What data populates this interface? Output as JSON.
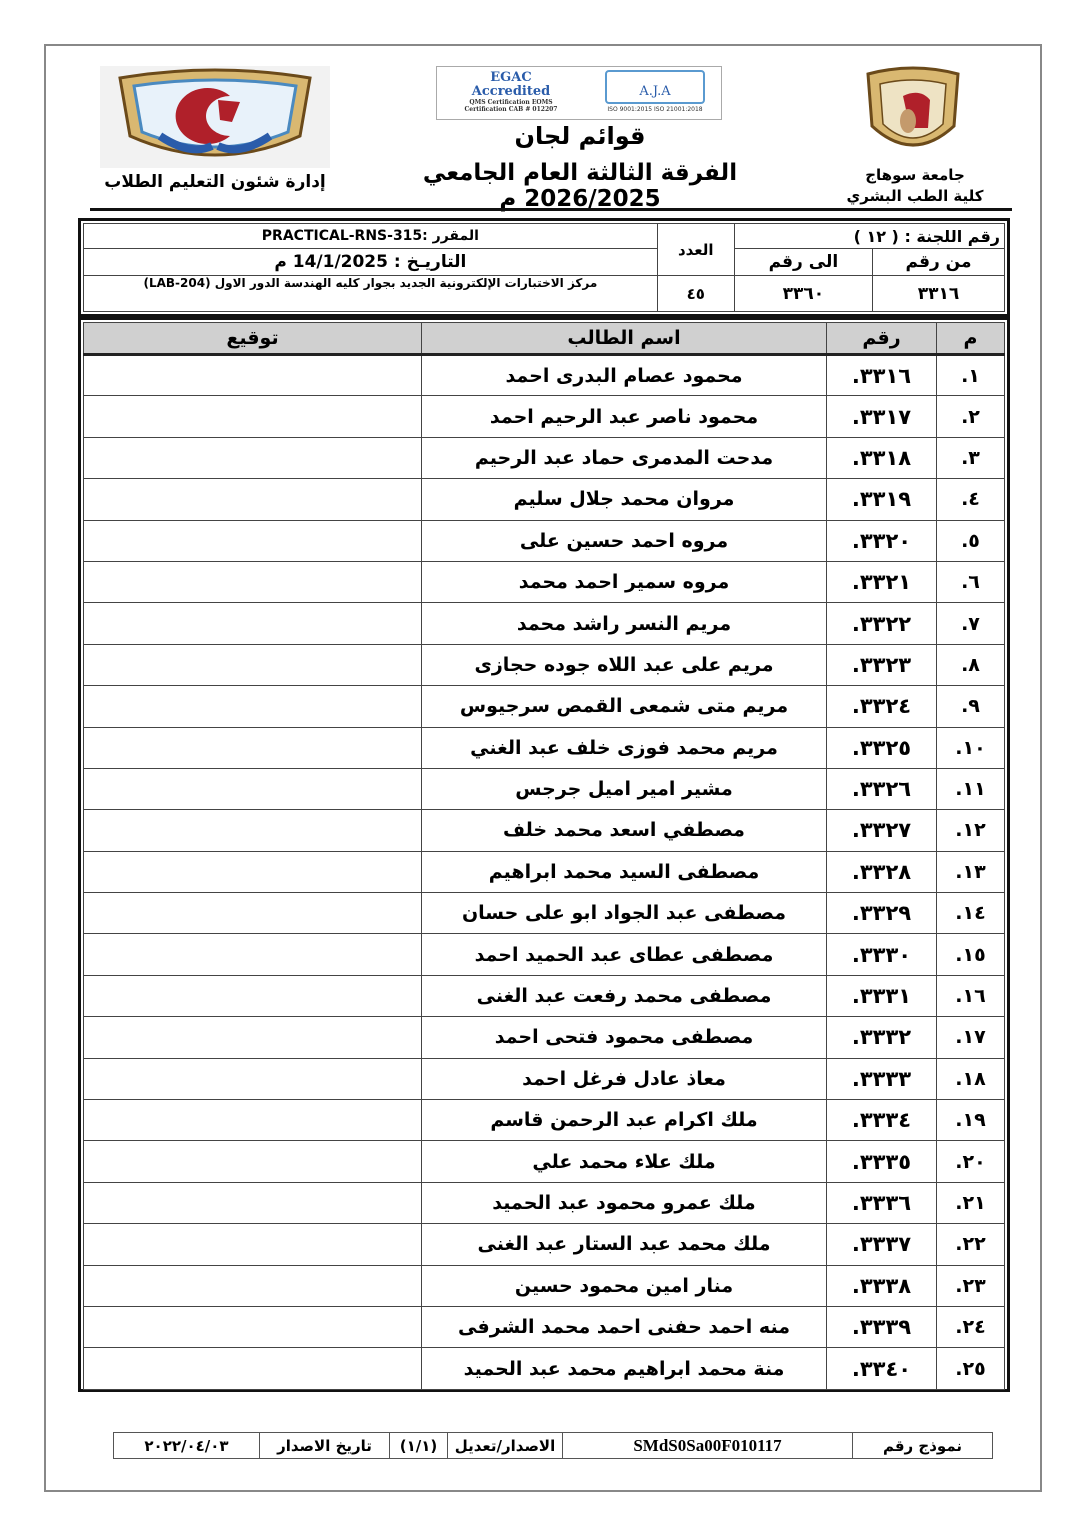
{
  "header": {
    "university": "جامعة سوهاج",
    "faculty": "كلية الطب البشري",
    "department": "إدارة شئون التعليم الطلاب",
    "title": "قوائم لجان",
    "subtitle": "الفرقة الثالثة العام الجامعي 2026/2025 م",
    "accreditation": {
      "egac": "EGAC Accredited",
      "egac_lines": "QMS Certification EOMS Certification CAB # 012207",
      "aja": "A.J.A",
      "aja_lines": "ISO 9001:2015 ISO 21001:2018"
    }
  },
  "info": {
    "committee": "رقم اللجنة : ( ١٢ )",
    "from_label": "من رقم",
    "to_label": "الى رقم",
    "from_value": "٣٣١٦",
    "to_value": "٣٣٦٠",
    "count_label": "العدد",
    "count_value": "٤٥",
    "course": "المقرر :PRACTICAL-RNS-315",
    "date": "التاريـخ : 14/1/2025 م",
    "location": "مركز الاختبارات الإلكترونية الجديد بجوار كليه الهندسة الدور الاول (LAB-204)"
  },
  "table": {
    "headers": [
      "م",
      "رقم",
      "اسم الطالب",
      "توقيع"
    ],
    "rows": [
      [
        "١.",
        "٣٣١٦.",
        "محمود عصام البدرى احمد"
      ],
      [
        "٢.",
        "٣٣١٧.",
        "محمود ناصر عبد الرحيم احمد"
      ],
      [
        "٣.",
        "٣٣١٨.",
        "مدحت المدمرى حماد عبد الرحيم"
      ],
      [
        "٤.",
        "٣٣١٩.",
        "مروان محمد جلال سليم"
      ],
      [
        "٥.",
        "٣٣٢٠.",
        "مروه احمد حسين على"
      ],
      [
        "٦.",
        "٣٣٢١.",
        "مروه سمير احمد محمد"
      ],
      [
        "٧.",
        "٣٣٢٢.",
        "مريم النسر راشد محمد"
      ],
      [
        "٨.",
        "٣٣٢٣.",
        "مريم على عبد اللاه جوده حجازى"
      ],
      [
        "٩.",
        "٣٣٢٤.",
        "مريم متى شمعى القمص سرجيوس"
      ],
      [
        "١٠.",
        "٣٣٢٥.",
        "مريم محمد فوزى خلف عبد الغني"
      ],
      [
        "١١.",
        "٣٣٢٦.",
        "مشير امير اميل جرجس"
      ],
      [
        "١٢.",
        "٣٣٢٧.",
        "مصطفي اسعد محمد خلف"
      ],
      [
        "١٣.",
        "٣٣٢٨.",
        "مصطفى السيد محمد ابراهيم"
      ],
      [
        "١٤.",
        "٣٣٢٩.",
        "مصطفى عبد الجواد ابو على حسان"
      ],
      [
        "١٥.",
        "٣٣٣٠.",
        "مصطفى عطاى عبد الحميد احمد"
      ],
      [
        "١٦.",
        "٣٣٣١.",
        "مصطفى محمد رفعت عبد الغنى"
      ],
      [
        "١٧.",
        "٣٣٣٢.",
        "مصطفى محمود فتحى احمد"
      ],
      [
        "١٨.",
        "٣٣٣٣.",
        "معاذ عادل فرغل احمد"
      ],
      [
        "١٩.",
        "٣٣٣٤.",
        "ملك اكرام عبد الرحمن قاسم"
      ],
      [
        "٢٠.",
        "٣٣٣٥.",
        "ملك علاء محمد علي"
      ],
      [
        "٢١.",
        "٣٣٣٦.",
        "ملك عمرو محمود عبد الحميد"
      ],
      [
        "٢٢.",
        "٣٣٣٧.",
        "ملك محمد عبد الستار عبد الغنى"
      ],
      [
        "٢٣.",
        "٣٣٣٨.",
        "منار امين محمود حسين"
      ],
      [
        "٢٤.",
        "٣٣٣٩.",
        "منه احمد حفنى احمد محمد الشرفى"
      ],
      [
        "٢٥.",
        "٣٣٤٠.",
        "منة محمد ابراهيم محمد عبد الحميد"
      ]
    ]
  },
  "footer": {
    "form_label": "نموذج رقم",
    "form_value": "SMdS0Sa00F010117",
    "version_label": "الاصدار/تعديل",
    "version_value": "(١/١)",
    "issue_label": "تاريخ الاصدار",
    "issue_value": "٢٠٢٢/٠٤/٠٣"
  },
  "colors": {
    "header_fill": "#d0d0d0",
    "logo_red": "#b0202a",
    "logo_blue": "#2a5caa",
    "logo_gold": "#c9a44a"
  }
}
